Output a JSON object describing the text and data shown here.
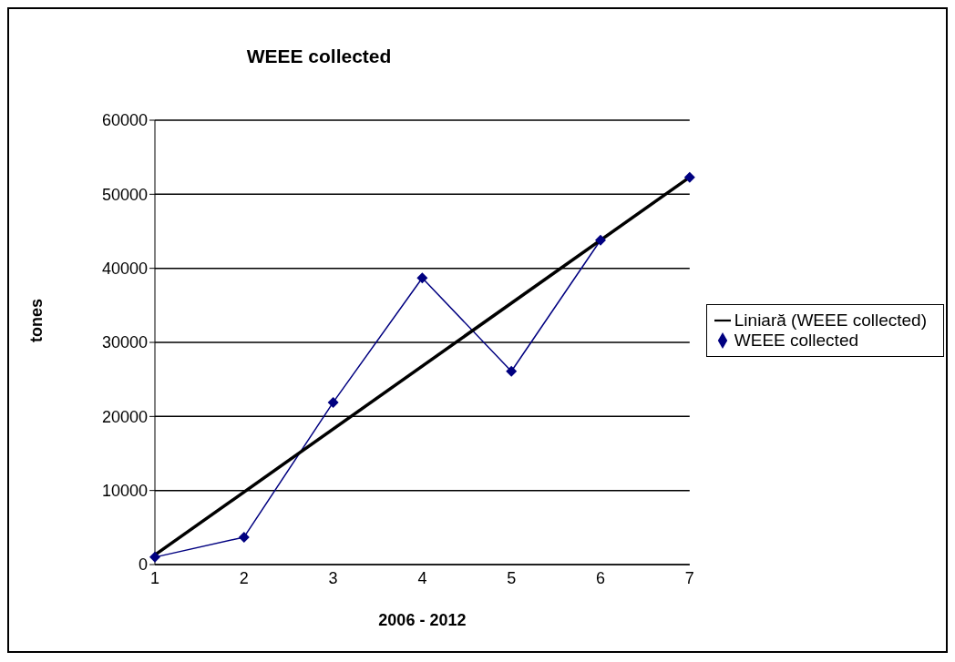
{
  "chart_data": {
    "type": "line",
    "title": "WEEE collected",
    "xlabel": "2006 - 2012",
    "ylabel": "tones",
    "categories": [
      "1",
      "2",
      "3",
      "4",
      "5",
      "6",
      "7"
    ],
    "series": [
      {
        "name": "WEEE collected",
        "color": "#000080",
        "marker": "diamond",
        "values": [
          1000,
          3700,
          21900,
          38700,
          26100,
          43800,
          52300
        ]
      },
      {
        "name": "Liniară (WEEE collected)",
        "color": "#000000",
        "marker": "none",
        "x": [
          "1",
          "7"
        ],
        "values": [
          1300,
          52300
        ]
      }
    ],
    "ylim": [
      0,
      60000
    ],
    "yticks": [
      0,
      10000,
      20000,
      30000,
      40000,
      50000,
      60000
    ],
    "grid": "y",
    "legend": "right"
  }
}
